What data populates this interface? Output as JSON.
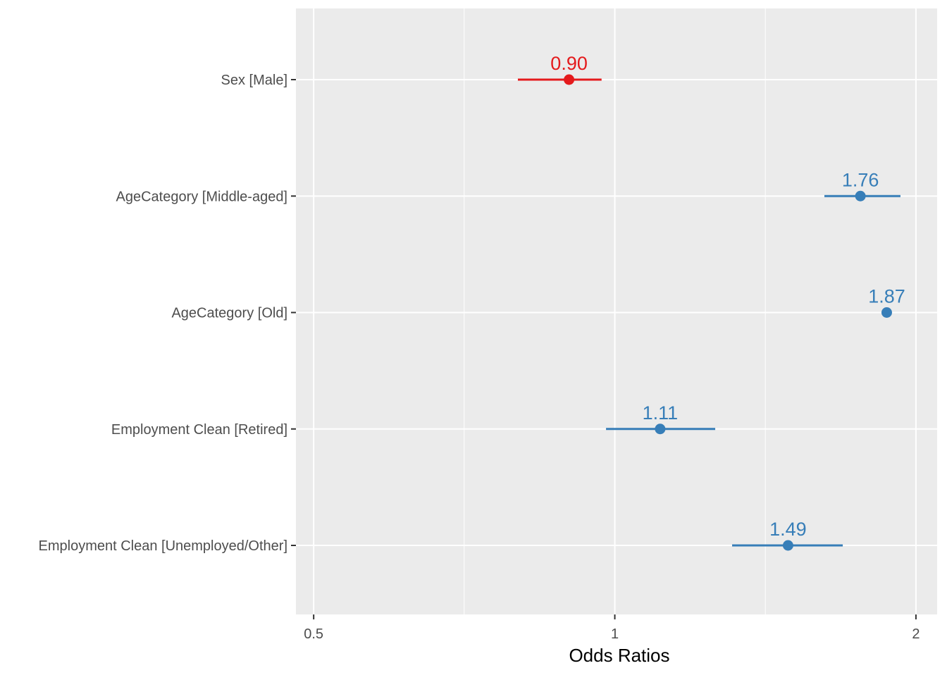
{
  "chart_data": {
    "type": "forest",
    "title": "",
    "xlabel": "Odds Ratios",
    "ylabel": "",
    "x_scale": "log",
    "xlim": [
      0.48,
      2.1
    ],
    "x_ticks": [
      0.5,
      1,
      2
    ],
    "x_tick_labels": [
      "0.5",
      "1",
      "2"
    ],
    "x_minor_gridlines": [
      0.707,
      1.414
    ],
    "grid": true,
    "colors": {
      "negative": "#e41a1c",
      "positive": "#377eb8",
      "panel": "#ebebeb",
      "grid": "#ffffff"
    },
    "terms": [
      {
        "label": "Sex [Male]",
        "estimate": 0.9,
        "estimate_label": "0.90",
        "ci_low": 0.8,
        "ci_high": 0.97
      },
      {
        "label": "AgeCategory [Middle-aged]",
        "estimate": 1.76,
        "estimate_label": "1.76",
        "ci_low": 1.62,
        "ci_high": 1.93
      },
      {
        "label": "AgeCategory [Old]",
        "estimate": 1.87,
        "estimate_label": "1.87",
        "ci_low": 1.87,
        "ci_high": 1.87
      },
      {
        "label": "Employment Clean [Retired]",
        "estimate": 1.11,
        "estimate_label": "1.11",
        "ci_low": 0.98,
        "ci_high": 1.26
      },
      {
        "label": "Employment Clean [Unemployed/Other]",
        "estimate": 1.49,
        "estimate_label": "1.49",
        "ci_low": 1.31,
        "ci_high": 1.69
      }
    ]
  }
}
